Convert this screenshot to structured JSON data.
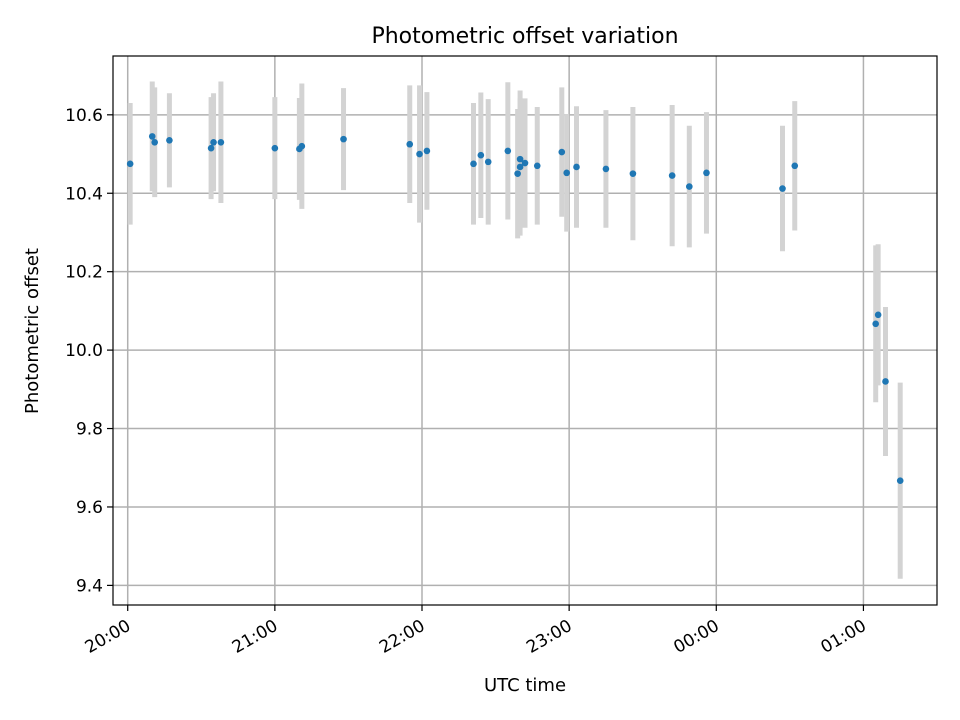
{
  "chart_data": {
    "type": "scatter",
    "title": "Photometric offset variation",
    "xlabel": "UTC time",
    "ylabel": "Photometric offset",
    "x_ticks": [
      "20:00",
      "21:00",
      "22:00",
      "23:00",
      "00:00",
      "01:00"
    ],
    "y_ticks": [
      "9.4",
      "9.6",
      "9.8",
      "10.0",
      "10.2",
      "10.4",
      "10.6"
    ],
    "y_tick_values": [
      9.4,
      9.6,
      9.8,
      10.0,
      10.2,
      10.4,
      10.6
    ],
    "xlim": [
      "19:54",
      "01:30"
    ],
    "ylim": [
      9.35,
      10.75
    ],
    "grid": true,
    "point_color": "#1f77b4",
    "errorbar_color": "#d3d3d3",
    "points": [
      {
        "t": "20:01",
        "y": 10.475,
        "err": 0.155
      },
      {
        "t": "20:10",
        "y": 10.545,
        "err": 0.14
      },
      {
        "t": "20:11",
        "y": 10.53,
        "err": 0.14
      },
      {
        "t": "20:17",
        "y": 10.535,
        "err": 0.12
      },
      {
        "t": "20:34",
        "y": 10.515,
        "err": 0.13
      },
      {
        "t": "20:35",
        "y": 10.53,
        "err": 0.125
      },
      {
        "t": "20:38",
        "y": 10.53,
        "err": 0.155
      },
      {
        "t": "21:00",
        "y": 10.515,
        "err": 0.13
      },
      {
        "t": "21:10",
        "y": 10.513,
        "err": 0.13
      },
      {
        "t": "21:11",
        "y": 10.52,
        "err": 0.16
      },
      {
        "t": "21:28",
        "y": 10.538,
        "err": 0.13
      },
      {
        "t": "21:55",
        "y": 10.525,
        "err": 0.15
      },
      {
        "t": "21:59",
        "y": 10.5,
        "err": 0.175
      },
      {
        "t": "22:02",
        "y": 10.508,
        "err": 0.15
      },
      {
        "t": "22:21",
        "y": 10.475,
        "err": 0.155
      },
      {
        "t": "22:24",
        "y": 10.497,
        "err": 0.16
      },
      {
        "t": "22:27",
        "y": 10.48,
        "err": 0.16
      },
      {
        "t": "22:35",
        "y": 10.508,
        "err": 0.175
      },
      {
        "t": "22:39",
        "y": 10.45,
        "err": 0.165
      },
      {
        "t": "22:40",
        "y": 10.487,
        "err": 0.175
      },
      {
        "t": "22:40",
        "y": 10.467,
        "err": 0.175
      },
      {
        "t": "22:42",
        "y": 10.477,
        "err": 0.165
      },
      {
        "t": "22:47",
        "y": 10.47,
        "err": 0.15
      },
      {
        "t": "22:57",
        "y": 10.505,
        "err": 0.165
      },
      {
        "t": "22:59",
        "y": 10.452,
        "err": 0.15
      },
      {
        "t": "23:03",
        "y": 10.467,
        "err": 0.155
      },
      {
        "t": "23:15",
        "y": 10.462,
        "err": 0.15
      },
      {
        "t": "23:26",
        "y": 10.45,
        "err": 0.17
      },
      {
        "t": "23:42",
        "y": 10.445,
        "err": 0.18
      },
      {
        "t": "23:49",
        "y": 10.417,
        "err": 0.155
      },
      {
        "t": "23:56",
        "y": 10.452,
        "err": 0.155
      },
      {
        "t": "00:27",
        "y": 10.412,
        "err": 0.16
      },
      {
        "t": "00:32",
        "y": 10.47,
        "err": 0.165
      },
      {
        "t": "01:05",
        "y": 10.067,
        "err": 0.2
      },
      {
        "t": "01:06",
        "y": 10.09,
        "err": 0.18
      },
      {
        "t": "01:09",
        "y": 9.92,
        "err": 0.19
      },
      {
        "t": "01:15",
        "y": 9.667,
        "err": 0.25
      }
    ]
  }
}
